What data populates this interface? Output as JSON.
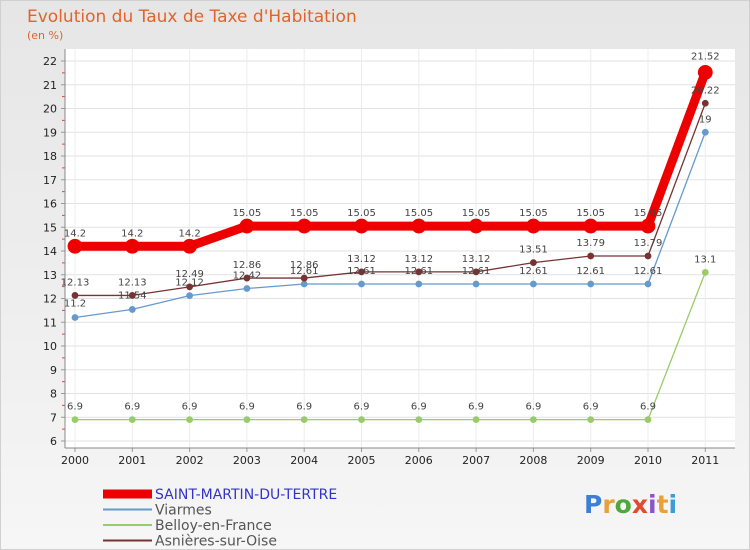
{
  "title": "Evolution du Taux de Taxe d'Habitation",
  "subtitle": "(en %)",
  "logo": {
    "text": "Proxiti",
    "letters": [
      "P",
      "r",
      "o",
      "x",
      "i",
      "t",
      "i"
    ],
    "colors": [
      "#3d7fd6",
      "#e8a13a",
      "#4ea83c",
      "#e04a2f",
      "#8a55c8",
      "#e8a13a",
      "#3d9bd6"
    ]
  },
  "chart_data": {
    "type": "line",
    "title": "Evolution du Taux de Taxe d'Habitation",
    "ylabel": "(en %)",
    "x": [
      "2000",
      "2001",
      "2002",
      "2003",
      "2004",
      "2005",
      "2006",
      "2007",
      "2008",
      "2009",
      "2010",
      "2011"
    ],
    "ylim": [
      6,
      22
    ],
    "yticks": [
      "6",
      "7",
      "8",
      "9",
      "10",
      "11",
      "12",
      "13",
      "14",
      "15",
      "16",
      "17",
      "18",
      "19",
      "20",
      "21",
      "22"
    ],
    "series": [
      {
        "name": "SAINT-MARTIN-DU-TERTRE",
        "color": "#ee0000",
        "width": 9,
        "marker": 7,
        "values": [
          14.2,
          14.2,
          14.2,
          15.05,
          15.05,
          15.05,
          15.05,
          15.05,
          15.05,
          15.05,
          15.05,
          21.52
        ],
        "labels": [
          "14.2",
          "14.2",
          "14.2",
          "15.05",
          "15.05",
          "15.05",
          "15.05",
          "15.05",
          "15.05",
          "15.05",
          "15.05",
          "21.52"
        ]
      },
      {
        "name": "Viarmes",
        "color": "#6699cc",
        "width": 1.3,
        "marker": 3,
        "values": [
          11.2,
          11.54,
          12.12,
          12.42,
          12.61,
          12.61,
          12.61,
          12.61,
          12.61,
          12.61,
          12.61,
          19
        ],
        "labels": [
          "11.2",
          "11.54",
          "12.12",
          "12.42",
          "12.61",
          "12.61",
          "12.61",
          "12.61",
          "12.61",
          "12.61",
          "12.61",
          "19"
        ]
      },
      {
        "name": "Belloy-en-France",
        "color": "#99cc66",
        "width": 1.3,
        "marker": 3,
        "values": [
          6.9,
          6.9,
          6.9,
          6.9,
          6.9,
          6.9,
          6.9,
          6.9,
          6.9,
          6.9,
          6.9,
          13.1
        ],
        "labels": [
          "6.9",
          "6.9",
          "6.9",
          "6.9",
          "6.9",
          "6.9",
          "6.9",
          "6.9",
          "6.9",
          "6.9",
          "6.9",
          "13.1"
        ]
      },
      {
        "name": "Asnières-sur-Oise",
        "color": "#773333",
        "width": 1.3,
        "marker": 3,
        "values": [
          12.13,
          12.13,
          12.49,
          12.86,
          12.86,
          13.12,
          13.12,
          13.12,
          13.51,
          13.79,
          13.79,
          20.22
        ],
        "labels": [
          "12.13",
          "12.13",
          "12.49",
          "12.86",
          "12.86",
          "13.12",
          "13.12",
          "13.12",
          "13.51",
          "13.79",
          "13.79",
          "20.22"
        ]
      }
    ],
    "legend_position": "bottom-left"
  }
}
